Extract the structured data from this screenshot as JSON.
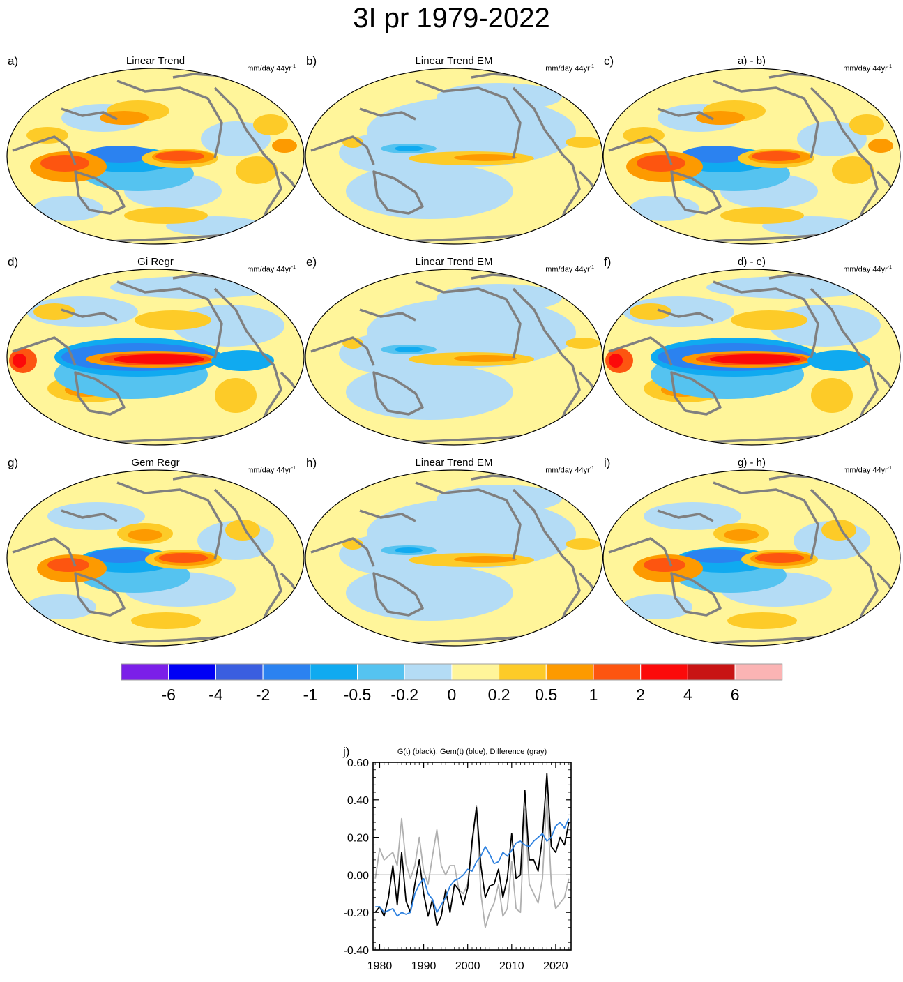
{
  "title": "3I pr 1979-2022",
  "panels": [
    {
      "letter": "a)",
      "title": "Linear Trend",
      "units": "mm/day 44yr",
      "units_sup": "-1",
      "pattern": "obs"
    },
    {
      "letter": "b)",
      "title": "Linear Trend EM",
      "units": "mm/day 44yr",
      "units_sup": "-1",
      "pattern": "em"
    },
    {
      "letter": "c)",
      "title": "a) - b)",
      "units": "mm/day 44yr",
      "units_sup": "-1",
      "pattern": "obs"
    },
    {
      "letter": "d)",
      "title": "Gi Regr",
      "units": "mm/day 44yr",
      "units_sup": "-1",
      "pattern": "gi"
    },
    {
      "letter": "e)",
      "title": "Linear Trend EM",
      "units": "mm/day 44yr",
      "units_sup": "-1",
      "pattern": "em"
    },
    {
      "letter": "f)",
      "title": "d) - e)",
      "units": "mm/day 44yr",
      "units_sup": "-1",
      "pattern": "gi"
    },
    {
      "letter": "g)",
      "title": "Gem Regr",
      "units": "mm/day 44yr",
      "units_sup": "-1",
      "pattern": "gem"
    },
    {
      "letter": "h)",
      "title": "Linear Trend EM",
      "units": "mm/day 44yr",
      "units_sup": "-1",
      "pattern": "em"
    },
    {
      "letter": "i)",
      "title": "g) - h)",
      "units": "mm/day 44yr",
      "units_sup": "-1",
      "pattern": "gem"
    }
  ],
  "colorbar": {
    "colors": [
      "#7b1fe8",
      "#0000f5",
      "#3a5ee0",
      "#2b82f0",
      "#10aaf0",
      "#55c3f0",
      "#b4dcf5",
      "#fff59a",
      "#fdcb28",
      "#fd9a00",
      "#fd5510",
      "#fc0a0a",
      "#c81414",
      "#fbb4b4"
    ],
    "labels": [
      "-6",
      "-4",
      "-2",
      "-1",
      "-0.5",
      "-0.2",
      "0",
      "0.2",
      "0.5",
      "1",
      "2",
      "4",
      "6"
    ]
  },
  "chart_data": {
    "type": "line",
    "label": "j)",
    "title": "G(t)  (black), Gem(t) (blue), Difference (gray)",
    "xlim": [
      1978.5,
      2023.5
    ],
    "ylim": [
      -0.4,
      0.6
    ],
    "yticks": [
      "0.60",
      "0.40",
      "0.20",
      "0.00",
      "-0.20",
      "-0.40"
    ],
    "ytick_values": [
      0.6,
      0.4,
      0.2,
      0.0,
      -0.2,
      -0.4
    ],
    "xticks": [
      "1980",
      "1990",
      "2000",
      "2010",
      "2020"
    ],
    "xtick_values": [
      1980,
      1990,
      2000,
      2010,
      2020
    ],
    "series": [
      {
        "name": "G(t)",
        "color": "#000000",
        "x": [
          1979,
          1980,
          1981,
          1982,
          1983,
          1984,
          1985,
          1986,
          1987,
          1988,
          1989,
          1990,
          1991,
          1992,
          1993,
          1994,
          1995,
          1996,
          1997,
          1998,
          1999,
          2000,
          2001,
          2002,
          2003,
          2004,
          2005,
          2006,
          2007,
          2008,
          2009,
          2010,
          2011,
          2012,
          2013,
          2014,
          2015,
          2016,
          2017,
          2018,
          2019,
          2020,
          2021,
          2022,
          2023
        ],
        "values": [
          -0.2,
          -0.17,
          -0.22,
          -0.12,
          0.05,
          -0.16,
          0.12,
          -0.14,
          -0.2,
          -0.05,
          0.08,
          -0.1,
          -0.22,
          -0.13,
          -0.27,
          -0.22,
          -0.08,
          -0.2,
          -0.05,
          -0.08,
          -0.16,
          -0.07,
          0.18,
          0.36,
          0.05,
          -0.12,
          -0.06,
          -0.05,
          0.03,
          -0.12,
          -0.02,
          0.22,
          -0.02,
          0.0,
          0.45,
          0.08,
          0.08,
          0.02,
          0.2,
          0.54,
          0.15,
          0.12,
          0.2,
          0.16,
          0.28
        ]
      },
      {
        "name": "Gem(t)",
        "color": "#2f82e0",
        "x": [
          1979,
          1980,
          1981,
          1982,
          1983,
          1984,
          1985,
          1986,
          1987,
          1988,
          1989,
          1990,
          1991,
          1992,
          1993,
          1994,
          1995,
          1996,
          1997,
          1998,
          1999,
          2000,
          2001,
          2002,
          2003,
          2004,
          2005,
          2006,
          2007,
          2008,
          2009,
          2010,
          2011,
          2012,
          2013,
          2014,
          2015,
          2016,
          2017,
          2018,
          2019,
          2020,
          2021,
          2022,
          2023
        ],
        "values": [
          -0.17,
          -0.17,
          -0.2,
          -0.19,
          -0.18,
          -0.22,
          -0.2,
          -0.21,
          -0.2,
          -0.1,
          -0.05,
          -0.02,
          -0.1,
          -0.13,
          -0.2,
          -0.16,
          -0.12,
          -0.06,
          -0.03,
          -0.02,
          0.0,
          0.03,
          0.02,
          0.07,
          0.1,
          0.15,
          0.11,
          0.06,
          0.07,
          0.12,
          0.1,
          0.13,
          0.17,
          0.18,
          0.16,
          0.15,
          0.18,
          0.2,
          0.22,
          0.18,
          0.2,
          0.26,
          0.28,
          0.25,
          0.3
        ]
      },
      {
        "name": "Difference",
        "color": "#b0b0b0",
        "x": [
          1979,
          1980,
          1981,
          1982,
          1983,
          1984,
          1985,
          1986,
          1987,
          1988,
          1989,
          1990,
          1991,
          1992,
          1993,
          1994,
          1995,
          1996,
          1997,
          1998,
          1999,
          2000,
          2001,
          2002,
          2003,
          2004,
          2005,
          2006,
          2007,
          2008,
          2009,
          2010,
          2011,
          2012,
          2013,
          2014,
          2015,
          2016,
          2017,
          2018,
          2019,
          2020,
          2021,
          2022,
          2023
        ],
        "values": [
          -0.02,
          0.14,
          0.08,
          0.1,
          0.12,
          0.05,
          0.3,
          0.06,
          -0.02,
          0.05,
          0.2,
          0.02,
          -0.05,
          0.1,
          0.24,
          0.05,
          0.0,
          0.05,
          0.05,
          -0.08,
          -0.1,
          -0.05,
          0.15,
          0.37,
          -0.1,
          -0.28,
          -0.2,
          -0.15,
          -0.05,
          -0.22,
          -0.18,
          0.07,
          -0.18,
          -0.2,
          0.35,
          -0.05,
          -0.1,
          -0.15,
          -0.02,
          0.42,
          -0.05,
          -0.18,
          -0.15,
          -0.12,
          -0.02
        ]
      }
    ]
  }
}
